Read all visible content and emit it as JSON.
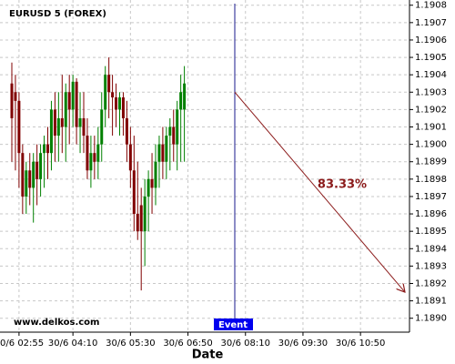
{
  "chart_data": {
    "type": "candlestick",
    "title": "EURUSD 5 (FOREX)",
    "xlabel": "Date",
    "watermark": "www.delkos.com",
    "event_label": "Event",
    "categories": [
      null,
      null,
      "30/6 02:55",
      null,
      null,
      null,
      null,
      null,
      null,
      null,
      null,
      null,
      null,
      null,
      null,
      null,
      null,
      "30/6 04:10",
      null,
      null,
      null,
      null,
      null,
      null,
      null,
      null,
      null,
      null,
      null,
      null,
      null,
      null,
      null,
      "30/6 05:30",
      null,
      null,
      null,
      null,
      null,
      null,
      null,
      null,
      null,
      null,
      null,
      null,
      null,
      null,
      null,
      "30/6 06:50",
      null,
      null,
      null,
      null,
      null,
      null,
      null,
      null,
      null,
      null,
      null,
      null,
      null,
      null,
      null,
      "30/6 08:10",
      null,
      null,
      null,
      null,
      null,
      null,
      null,
      null,
      null,
      null,
      null,
      null,
      null,
      null,
      null,
      "30/6 09:30",
      null,
      null,
      null,
      null,
      null,
      null,
      null,
      null,
      null,
      null,
      null,
      null,
      null,
      null,
      null,
      "30/6 10:50",
      null,
      null,
      null,
      null,
      null,
      null,
      null,
      null,
      null,
      null,
      null,
      null,
      null
    ],
    "open": [
      1.19035,
      1.1903,
      1.19025,
      1.18995,
      1.1897,
      1.18985,
      1.18975,
      1.1899,
      1.1898,
      1.18995,
      1.19,
      1.18995,
      1.1902,
      1.19005,
      1.19015,
      1.1901,
      1.1903,
      1.1902,
      1.19036,
      1.1901,
      1.19015,
      1.19005,
      1.18985,
      1.18995,
      1.1899,
      1.19,
      1.1902,
      1.1904,
      1.1903,
      1.19027,
      1.1902,
      1.19027,
      1.19015,
      1.19,
      1.18985,
      1.1896,
      1.18965,
      1.1895,
      1.1897,
      1.1898,
      1.18975,
      1.1899,
      1.19,
      1.1899,
      1.19005,
      1.1901,
      1.19,
      1.1902,
      1.1902,
      null,
      null,
      null,
      null,
      null,
      null,
      null,
      null,
      null,
      null,
      null,
      null,
      null,
      null,
      null,
      null,
      null,
      null,
      null,
      null,
      null,
      null,
      null,
      null,
      null,
      null,
      null,
      null,
      null,
      null,
      null,
      null,
      null,
      null,
      null,
      null,
      null,
      null,
      null,
      null,
      null,
      null,
      null,
      null,
      null,
      null,
      null,
      null,
      null,
      null,
      null,
      null,
      null,
      null,
      null,
      null,
      null,
      null,
      null,
      null,
      null,
      null
    ],
    "high": [
      1.19047,
      1.1904,
      1.1903,
      1.19,
      1.1899,
      1.18995,
      1.18995,
      1.19,
      1.19,
      1.19005,
      1.1901,
      1.19025,
      1.1903,
      1.1903,
      1.1904,
      1.19035,
      1.1904,
      1.1904,
      1.19038,
      1.1903,
      1.1903,
      1.19015,
      1.19005,
      1.19005,
      1.1901,
      1.1903,
      1.19045,
      1.1905,
      1.1904,
      1.19035,
      1.1903,
      1.1903,
      1.19025,
      1.1901,
      1.19005,
      1.1899,
      1.18975,
      1.1898,
      1.18985,
      1.18995,
      1.19,
      1.19005,
      1.1901,
      1.1901,
      1.19015,
      1.1902,
      1.19025,
      1.1904,
      1.19045,
      null,
      null,
      null,
      null,
      null,
      null,
      null,
      null,
      null,
      null,
      null,
      null,
      null,
      null,
      null,
      null,
      null,
      null,
      null,
      null,
      null,
      null,
      null,
      null,
      null,
      null,
      null,
      null,
      null,
      null,
      null,
      null,
      null,
      null,
      null,
      null,
      null,
      null,
      null,
      null,
      null,
      null,
      null,
      null,
      null,
      null,
      null,
      null,
      null,
      null,
      null,
      null,
      null,
      null,
      null,
      null,
      null,
      null,
      null,
      null,
      null,
      null
    ],
    "low": [
      1.1899,
      1.18985,
      1.18975,
      1.1896,
      1.1896,
      1.18965,
      1.18955,
      1.18965,
      1.1897,
      1.18975,
      1.1898,
      1.18985,
      1.1899,
      1.1899,
      1.18995,
      1.1899,
      1.19,
      1.1901,
      1.19,
      1.18995,
      1.18995,
      1.1898,
      1.18975,
      1.1898,
      1.1898,
      1.1899,
      1.1901,
      1.19015,
      1.19005,
      1.1901,
      1.19005,
      1.19005,
      1.1899,
      1.18975,
      1.1895,
      1.18945,
      1.18916,
      1.1893,
      1.1895,
      1.1896,
      1.18965,
      1.18975,
      1.1898,
      1.1898,
      1.18985,
      1.1899,
      1.18985,
      1.1899,
      1.1899,
      null,
      null,
      null,
      null,
      null,
      null,
      null,
      null,
      null,
      null,
      null,
      null,
      null,
      null,
      null,
      null,
      null,
      null,
      null,
      null,
      null,
      null,
      null,
      null,
      null,
      null,
      null,
      null,
      null,
      null,
      null,
      null,
      null,
      null,
      null,
      null,
      null,
      null,
      null,
      null,
      null,
      null,
      null,
      null,
      null,
      null,
      null,
      null,
      null,
      null,
      null,
      null,
      null,
      null,
      null,
      null,
      null,
      null,
      null,
      null,
      null,
      null
    ],
    "close": [
      1.19015,
      1.19025,
      1.18995,
      1.1897,
      1.18985,
      1.18975,
      1.1899,
      1.1898,
      1.18995,
      1.19,
      1.18995,
      1.1902,
      1.19005,
      1.19015,
      1.1901,
      1.1903,
      1.1902,
      1.19036,
      1.1901,
      1.19015,
      1.19005,
      1.18985,
      1.18995,
      1.1899,
      1.19,
      1.1902,
      1.1904,
      1.1903,
      1.19027,
      1.1902,
      1.19027,
      1.19015,
      1.19,
      1.18985,
      1.1896,
      1.1895,
      1.1895,
      1.1897,
      1.1898,
      1.18975,
      1.1899,
      1.19,
      1.1899,
      1.19005,
      1.1901,
      1.19,
      1.1902,
      1.1903,
      1.19035,
      null,
      null,
      null,
      null,
      null,
      null,
      null,
      null,
      null,
      null,
      null,
      null,
      null,
      null,
      null,
      null,
      null,
      null,
      null,
      null,
      null,
      null,
      null,
      null,
      null,
      null,
      null,
      null,
      null,
      null,
      null,
      null,
      null,
      null,
      null,
      null,
      null,
      null,
      null,
      null,
      null,
      null,
      null,
      null,
      null,
      null,
      null,
      null,
      null,
      null,
      null,
      null,
      null,
      null,
      null,
      null,
      null,
      null,
      null,
      null,
      null,
      null
    ],
    "up_color": "#008000",
    "down_color": "#800000",
    "forecast": {
      "label": "83.33%",
      "start": 1.1903,
      "end": 1.18915,
      "color": "#8b1a1a"
    },
    "ylim": [
      1.18892,
      1.19083
    ],
    "yticks": [
      {
        "value": 1.189,
        "label": "1.1890"
      },
      1.1891,
      1.1892,
      1.1893,
      1.1894,
      1.1895,
      1.1896,
      1.1897,
      1.1898,
      1.1899,
      {
        "value": 1.19,
        "label": "1.1900"
      },
      1.1901,
      1.1902,
      1.1903,
      1.1904,
      1.1905,
      1.1906,
      1.1907,
      1.1908
    ],
    "grid": true
  }
}
